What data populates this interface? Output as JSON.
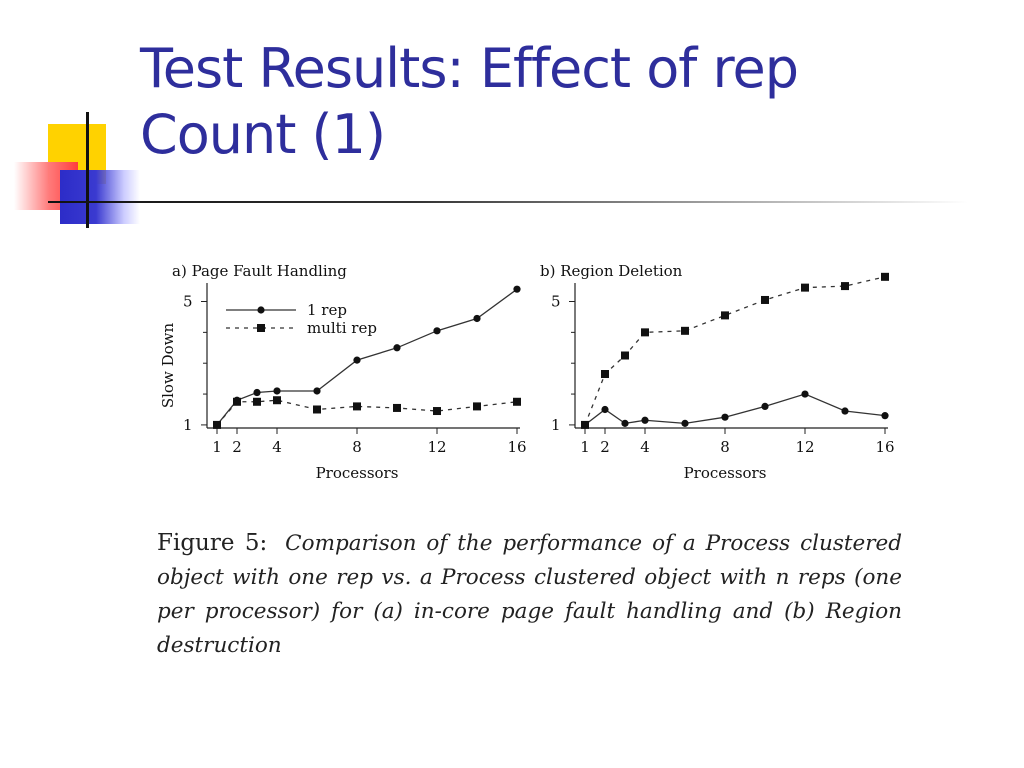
{
  "slide": {
    "title_line1": "Test Results: Effect of rep",
    "title_line2": "Count (1)",
    "accent_color": "#2e2e9c"
  },
  "caption": {
    "label": "Figure 5:",
    "text": "Comparison of the performance of a Process clustered object with one rep vs. a Process clustered object with n reps (one per processor) for (a) in-core page fault handling and (b) Region destruction"
  },
  "chart_data": [
    {
      "type": "line",
      "title": "a) Page Fault Handling",
      "xlabel": "Processors",
      "ylabel": "Slow Down",
      "xlim": [
        0.5,
        16
      ],
      "ylim": [
        0.9,
        5.6
      ],
      "xticks": [
        1,
        2,
        4,
        8,
        12,
        16
      ],
      "yticks": [
        1,
        5
      ],
      "legend": "top-left",
      "grid": false,
      "series": [
        {
          "name": "1 rep",
          "style": "solid",
          "marker": "circle",
          "x": [
            1,
            2,
            3,
            4,
            6,
            8,
            10,
            12,
            14,
            16
          ],
          "y": [
            1.0,
            1.8,
            2.05,
            2.1,
            2.1,
            3.1,
            3.5,
            4.05,
            4.45,
            5.4
          ]
        },
        {
          "name": "multi rep",
          "style": "dashed",
          "marker": "square",
          "x": [
            1,
            2,
            3,
            4,
            6,
            8,
            10,
            12,
            14,
            16
          ],
          "y": [
            1.0,
            1.75,
            1.75,
            1.8,
            1.5,
            1.6,
            1.55,
            1.45,
            1.6,
            1.75
          ]
        }
      ]
    },
    {
      "type": "line",
      "title": "b) Region Deletion",
      "xlabel": "Processors",
      "ylabel": "",
      "xlim": [
        0.5,
        16
      ],
      "ylim": [
        0.9,
        5.6
      ],
      "xticks": [
        1,
        2,
        4,
        8,
        12,
        16
      ],
      "yticks": [
        1,
        5
      ],
      "grid": false,
      "series": [
        {
          "name": "1 rep",
          "style": "solid",
          "marker": "circle",
          "x": [
            1,
            2,
            3,
            4,
            6,
            8,
            10,
            12,
            14,
            16
          ],
          "y": [
            1.0,
            1.5,
            1.05,
            1.15,
            1.05,
            1.25,
            1.6,
            2.0,
            1.45,
            1.3
          ]
        },
        {
          "name": "multi rep",
          "style": "dashed",
          "marker": "square",
          "x": [
            1,
            2,
            3,
            4,
            6,
            8,
            10,
            12,
            14,
            16
          ],
          "y": [
            1.0,
            2.65,
            3.25,
            4.0,
            4.05,
            4.55,
            5.05,
            5.45,
            5.5,
            5.8
          ]
        }
      ]
    }
  ]
}
